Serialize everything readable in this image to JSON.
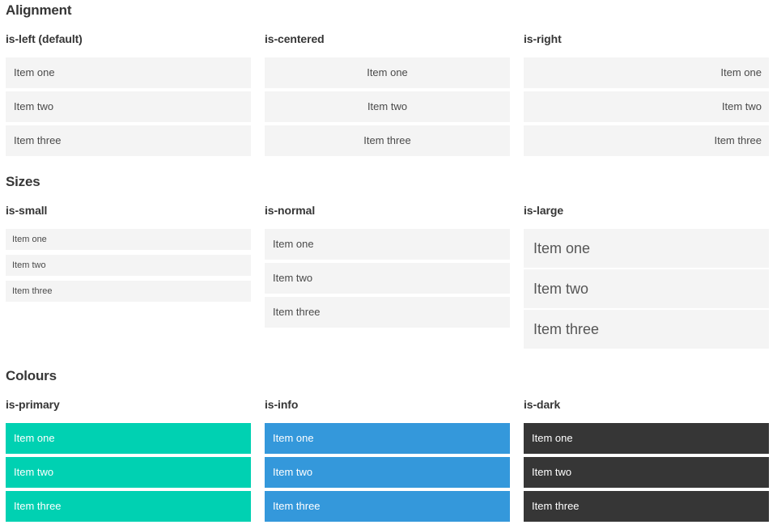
{
  "page": {
    "sections": [
      {
        "title": "Alignment",
        "columns": [
          {
            "heading": "is-left (default)",
            "items": [
              "Item one",
              "Item two",
              "Item three"
            ]
          },
          {
            "heading": "is-centered",
            "items": [
              "Item one",
              "Item two",
              "Item three"
            ]
          },
          {
            "heading": "is-right",
            "items": [
              "Item one",
              "Item two",
              "Item three"
            ]
          }
        ]
      },
      {
        "title": "Sizes",
        "columns": [
          {
            "heading": "is-small",
            "items": [
              "Item one",
              "Item two",
              "Item three"
            ]
          },
          {
            "heading": "is-normal",
            "items": [
              "Item one",
              "Item two",
              "Item three"
            ]
          },
          {
            "heading": "is-large",
            "items": [
              "Item one",
              "Item two",
              "Item three"
            ]
          }
        ]
      },
      {
        "title": "Colours",
        "columns": [
          {
            "heading": "is-primary",
            "items": [
              "Item one",
              "Item two",
              "Item three"
            ]
          },
          {
            "heading": "is-info",
            "items": [
              "Item one",
              "Item two",
              "Item three"
            ]
          },
          {
            "heading": "is-dark",
            "items": [
              "Item one",
              "Item two",
              "Item three"
            ]
          }
        ]
      }
    ]
  },
  "colors": {
    "primary": "#00d1b2",
    "info": "#3498db",
    "dark": "#363636",
    "item-bg": "#f4f4f4",
    "item-text": "#4a4a4a",
    "heading-text": "#363636",
    "page-bg": "#ffffff"
  }
}
